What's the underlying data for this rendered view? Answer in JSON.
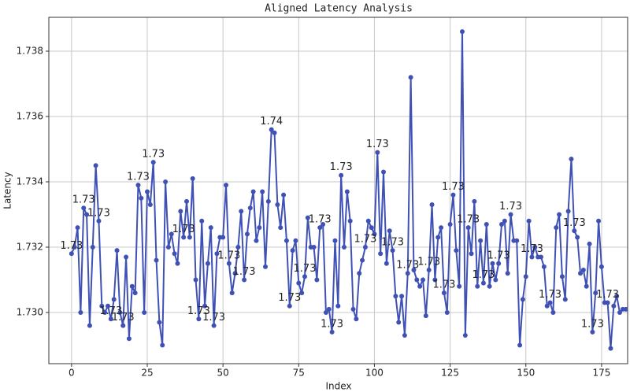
{
  "chart_data": {
    "type": "line",
    "title": "Aligned Latency Analysis",
    "xlabel": "Index",
    "ylabel": "Latency",
    "color": "#3f51b5",
    "grid": true,
    "xlim": [
      -7.5,
      183.6
    ],
    "xticks": [
      0,
      25,
      50,
      75,
      100,
      125,
      150,
      175
    ],
    "ylim": [
      1.728434,
      1.739036
    ],
    "yticks": [
      {
        "value": 1.73,
        "label": "1.730"
      },
      1.732,
      1.734,
      1.736,
      1.738
    ],
    "values": [
      1.7318,
      1.732,
      1.7326,
      1.73,
      1.7332,
      1.733,
      1.7296,
      1.732,
      1.7345,
      1.7328,
      1.7302,
      1.73,
      1.7302,
      1.7298,
      1.7304,
      1.7319,
      1.73,
      1.7296,
      1.7317,
      1.7292,
      1.7308,
      1.7306,
      1.7339,
      1.7335,
      1.73,
      1.7337,
      1.7333,
      1.7346,
      1.7316,
      1.7297,
      1.729,
      1.734,
      1.732,
      1.7324,
      1.7318,
      1.7315,
      1.7331,
      1.7323,
      1.7334,
      1.7323,
      1.7341,
      1.731,
      1.7298,
      1.7328,
      1.7302,
      1.7315,
      1.7326,
      1.7296,
      1.7318,
      1.7323,
      1.7323,
      1.7339,
      1.7315,
      1.7306,
      1.7312,
      1.732,
      1.7331,
      1.731,
      1.7324,
      1.7332,
      1.7337,
      1.7322,
      1.7326,
      1.7337,
      1.7314,
      1.7334,
      1.7356,
      1.7355,
      1.7333,
      1.7326,
      1.7336,
      1.7322,
      1.7302,
      1.7319,
      1.7322,
      1.7309,
      1.7306,
      1.7311,
      1.7329,
      1.732,
      1.732,
      1.731,
      1.7326,
      1.7327,
      1.73,
      1.7301,
      1.7294,
      1.7322,
      1.7302,
      1.7342,
      1.732,
      1.7337,
      1.7328,
      1.7301,
      1.7298,
      1.7312,
      1.7316,
      1.732,
      1.7328,
      1.7326,
      1.7324,
      1.7349,
      1.7318,
      1.7343,
      1.7315,
      1.7325,
      1.7319,
      1.7305,
      1.7297,
      1.7305,
      1.7293,
      1.7312,
      1.7372,
      1.7313,
      1.731,
      1.7308,
      1.731,
      1.7299,
      1.7313,
      1.7333,
      1.731,
      1.7323,
      1.7326,
      1.7306,
      1.73,
      1.7327,
      1.7336,
      1.7319,
      1.7308,
      1.7386,
      1.7293,
      1.7326,
      1.7318,
      1.7334,
      1.7308,
      1.7322,
      1.7309,
      1.7327,
      1.7308,
      1.7315,
      1.731,
      1.7315,
      1.7327,
      1.7328,
      1.7312,
      1.733,
      1.7322,
      1.7322,
      1.729,
      1.7304,
      1.7311,
      1.7328,
      1.7317,
      1.732,
      1.7317,
      1.7317,
      1.7314,
      1.7302,
      1.7303,
      1.73,
      1.7326,
      1.733,
      1.7311,
      1.7304,
      1.7331,
      1.7347,
      1.7325,
      1.7323,
      1.7312,
      1.7313,
      1.7308,
      1.7321,
      1.7294,
      1.7306,
      1.7328,
      1.7314,
      1.7303,
      1.7303,
      1.7289,
      1.7302,
      1.7305,
      1.73,
      1.7301,
      1.7301
    ],
    "value_labels": [
      "1.73",
      null,
      null,
      null,
      "1.73",
      null,
      null,
      null,
      null,
      "1.73",
      null,
      null,
      null,
      "1.73",
      null,
      null,
      null,
      "1.73",
      null,
      null,
      null,
      null,
      "1.73",
      null,
      null,
      null,
      null,
      "1.73",
      null,
      null,
      null,
      null,
      null,
      null,
      null,
      null,
      null,
      "1.73",
      null,
      null,
      null,
      null,
      "1.73",
      null,
      null,
      null,
      null,
      "1.73",
      null,
      null,
      null,
      null,
      "1.73",
      null,
      null,
      null,
      null,
      "1.73",
      null,
      null,
      null,
      null,
      null,
      null,
      null,
      null,
      "1.74",
      null,
      null,
      null,
      null,
      null,
      "1.73",
      null,
      null,
      null,
      null,
      "1.73",
      null,
      null,
      null,
      null,
      "1.73",
      null,
      null,
      null,
      "1.73",
      null,
      null,
      "1.73",
      null,
      null,
      null,
      null,
      null,
      null,
      null,
      "1.73",
      null,
      null,
      null,
      "1.73",
      null,
      null,
      null,
      null,
      "1.73",
      null,
      null,
      null,
      null,
      "1.73",
      null,
      null,
      null,
      null,
      null,
      null,
      "1.73",
      null,
      null,
      null,
      null,
      "1.73",
      null,
      null,
      "1.73",
      null,
      null,
      null,
      null,
      "1.73",
      null,
      null,
      null,
      null,
      "1.73",
      null,
      null,
      null,
      null,
      "1.73",
      null,
      null,
      null,
      "1.73",
      null,
      null,
      null,
      null,
      null,
      null,
      "1.73",
      null,
      null,
      null,
      null,
      null,
      "1.73",
      null,
      null,
      null,
      null,
      null,
      null,
      null,
      "1.73",
      null,
      null,
      null,
      null,
      null,
      "1.73",
      null,
      null,
      null,
      null,
      "1.73",
      null,
      null,
      null,
      null,
      null,
      null
    ]
  }
}
